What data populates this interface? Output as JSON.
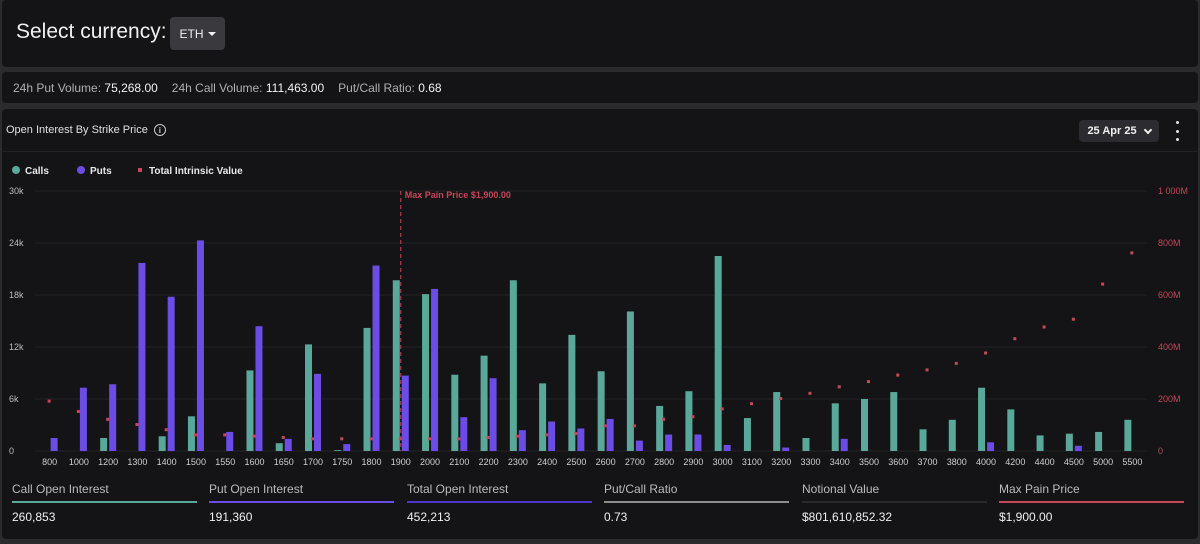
{
  "header": {
    "select_label": "Select currency:",
    "currency": "ETH",
    "caret_icon": "caret-down-icon"
  },
  "stats": {
    "put_volume_label": "24h Put Volume:",
    "put_volume": "75,268.00",
    "call_volume_label": "24h Call Volume:",
    "call_volume": "111,463.00",
    "ratio_label": "Put/Call Ratio:",
    "ratio": "0.68"
  },
  "chart_panel": {
    "title": "Open Interest By Strike Price",
    "info_icon": "info-icon",
    "date": "25 Apr 25",
    "date_icon": "chevron-down-icon",
    "menu_icon": "more-vertical-icon"
  },
  "colors": {
    "calls": "#5aa89a",
    "puts": "#6b4de6",
    "intrinsic": "#c8465a",
    "max_pain": "#c8465a",
    "call_line": "#5aa89a",
    "put_line": "#6b4de6",
    "total_line": "#4f35c9",
    "ratio_line": "#8c8c8c",
    "notional_line": "#2a2a2e",
    "maxpain_line": "#c8465a"
  },
  "chart_data": {
    "type": "bar",
    "legend": [
      "Calls",
      "Puts",
      "Total Intrinsic Value"
    ],
    "legend_position": "top-left",
    "categories": [
      "800",
      "1000",
      "1200",
      "1300",
      "1400",
      "1500",
      "1550",
      "1600",
      "1650",
      "1700",
      "1750",
      "1800",
      "1900",
      "2000",
      "2100",
      "2200",
      "2300",
      "2400",
      "2500",
      "2600",
      "2700",
      "2800",
      "2900",
      "3000",
      "3100",
      "3200",
      "3300",
      "3400",
      "3500",
      "3600",
      "3700",
      "3800",
      "4000",
      "4200",
      "4400",
      "4500",
      "5000",
      "5500"
    ],
    "series": [
      {
        "name": "Calls",
        "axis": "left",
        "values": [
          0,
          0,
          1500,
          0,
          1700,
          4000,
          0,
          9300,
          900,
          12300,
          100,
          14200,
          19700,
          18100,
          8800,
          11000,
          19700,
          7800,
          13400,
          9200,
          16100,
          5200,
          6900,
          22500,
          3800,
          6800,
          1500,
          5500,
          6000,
          6800,
          2500,
          3600,
          7300,
          4800,
          1800,
          2000,
          2200,
          3600
        ]
      },
      {
        "name": "Puts",
        "axis": "left",
        "values": [
          1500,
          7300,
          7700,
          21700,
          17800,
          24300,
          2200,
          14400,
          1400,
          8900,
          800,
          21400,
          8700,
          18700,
          3900,
          8400,
          2400,
          3400,
          2600,
          3700,
          1200,
          1900,
          1900,
          700,
          0,
          400,
          0,
          1400,
          0,
          0,
          0,
          0,
          1000,
          0,
          0,
          600,
          0,
          0
        ]
      },
      {
        "name": "Total Intrinsic Value",
        "axis": "right",
        "type": "scatter",
        "values": [
          190,
          150,
          120,
          100,
          80,
          60,
          60,
          55,
          50,
          45,
          45,
          45,
          45,
          45,
          45,
          50,
          55,
          60,
          65,
          95,
          95,
          120,
          130,
          160,
          180,
          200,
          220,
          245,
          265,
          290,
          310,
          335,
          375,
          430,
          475,
          505,
          640,
          760
        ]
      }
    ],
    "y_left": {
      "min": 0,
      "max": 30000,
      "ticks": [
        "0",
        "6k",
        "12k",
        "18k",
        "24k",
        "30k"
      ]
    },
    "y_right": {
      "min": 0,
      "max": 1000,
      "ticks": [
        "0",
        "200M",
        "400M",
        "600M",
        "800M",
        "1 000M"
      ]
    },
    "max_pain": {
      "strike": "1900",
      "label": "Max Pain Price $1,900.00"
    },
    "grid": true
  },
  "summary": [
    {
      "label": "Call Open Interest",
      "value": "260,853",
      "color_key": "call_line"
    },
    {
      "label": "Put Open Interest",
      "value": "191,360",
      "color_key": "put_line"
    },
    {
      "label": "Total Open Interest",
      "value": "452,213",
      "color_key": "total_line"
    },
    {
      "label": "Put/Call Ratio",
      "value": "0.73",
      "color_key": "ratio_line"
    },
    {
      "label": "Notional Value",
      "value": "$801,610,852.32",
      "color_key": "notional_line"
    },
    {
      "label": "Max Pain Price",
      "value": "$1,900.00",
      "color_key": "maxpain_line"
    }
  ]
}
